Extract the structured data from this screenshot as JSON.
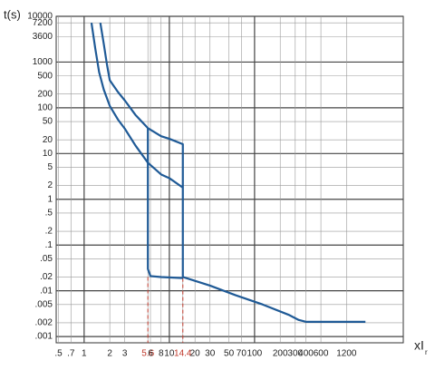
{
  "chart_data": {
    "type": "line",
    "ylabel": "t(s)",
    "xlabel": "xI",
    "xlabel_sub": "r",
    "log_x": true,
    "log_y": true,
    "grid": true,
    "xlim": [
      0.47,
      5560
    ],
    "ylim": [
      0.00073,
      10000
    ],
    "xticks": [
      {
        "value": 0.5,
        "label": ".5"
      },
      {
        "value": 0.7,
        "label": ".7"
      },
      1,
      2,
      3,
      5.6,
      6,
      8,
      10,
      14.4,
      20,
      30,
      50,
      70,
      100,
      200,
      300,
      400,
      600,
      1200
    ],
    "yticks": [
      10000,
      7200,
      3600,
      1000,
      500,
      200,
      100,
      50,
      20,
      10,
      5,
      2,
      1,
      {
        "value": 0.5,
        "label": ".5"
      },
      {
        "value": 0.2,
        "label": ".2"
      },
      {
        "value": 0.1,
        "label": ".1"
      },
      {
        "value": 0.05,
        "label": ".05"
      },
      {
        "value": 0.02,
        "label": ".02"
      },
      {
        "value": 0.01,
        "label": ".01"
      },
      {
        "value": 0.005,
        "label": ".005"
      },
      {
        "value": 0.002,
        "label": ".002"
      },
      {
        "value": 0.001,
        "label": ".001"
      }
    ],
    "series": [
      {
        "color": "#1f5a96",
        "x": [
          1.55,
          1.7,
          1.85,
          2,
          2.5,
          3,
          4,
          5.6,
          8,
          10,
          14.4,
          14.4,
          30,
          60,
          125,
          250,
          330,
          400,
          2000
        ],
        "values": [
          7200,
          2500,
          900,
          400,
          220,
          145,
          70,
          36,
          24,
          21,
          16,
          0.02,
          0.013,
          0.008,
          0.005,
          0.003,
          0.0023,
          0.0021,
          0.0021
        ]
      },
      {
        "color": "#1f5a96",
        "x": [
          1.22,
          1.35,
          1.5,
          1.7,
          2,
          2.5,
          3,
          4,
          5.6,
          8,
          10,
          14.4
        ],
        "values": [
          7200,
          2000,
          600,
          250,
          110,
          55,
          35,
          15,
          6.3,
          3.5,
          2.9,
          1.8
        ]
      },
      {
        "color": "#1f5a96",
        "x": [
          5.6,
          5.6,
          6,
          8,
          14.4
        ],
        "values": [
          36,
          0.03,
          0.021,
          0.02,
          0.019
        ]
      }
    ],
    "reference_lines": [
      {
        "x": 5.6,
        "y": 0.02
      },
      {
        "x": 14.4,
        "y": 0.019
      }
    ],
    "reference_color": "#c0392b"
  }
}
